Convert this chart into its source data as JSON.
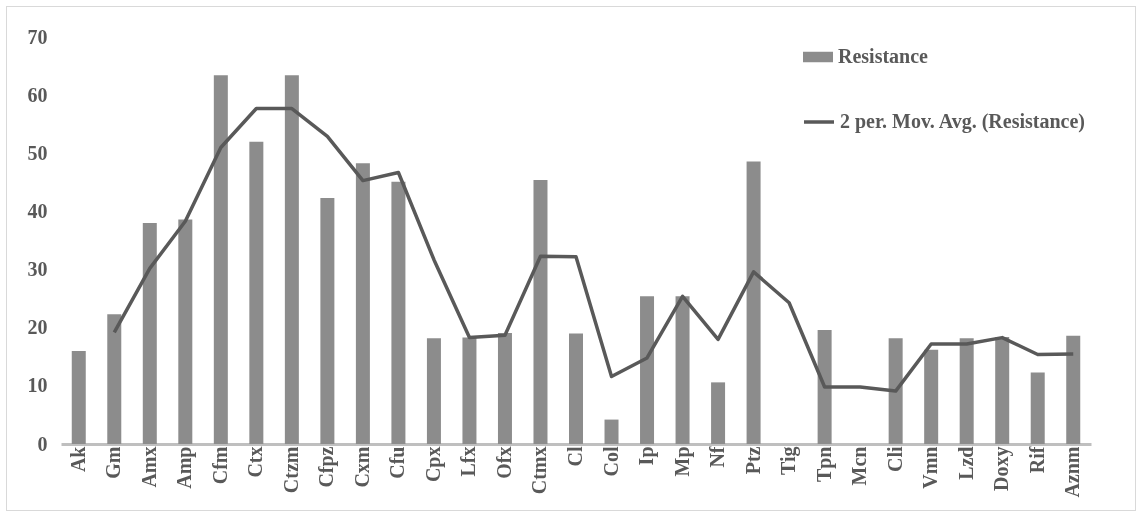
{
  "chart_data": {
    "type": "bar",
    "categories": [
      "Ak",
      "Gm",
      "Amx",
      "Amp",
      "Cfm",
      "Ctx",
      "Ctzm",
      "Cfpz",
      "Cxm",
      "Cfu",
      "Cpx",
      "Lfx",
      "Ofx",
      "Ctmx",
      "Cl",
      "Col",
      "Ip",
      "Mp",
      "Nf",
      "Ptz",
      "Tig",
      "Tpn",
      "Mcn",
      "Cli",
      "Vmn",
      "Lzd",
      "Doxy",
      "Rif",
      "Aznm"
    ],
    "series": [
      {
        "name": "Resistance",
        "color": "#8c8c8c",
        "values": [
          16,
          22.3,
          38,
          38.6,
          63.4,
          52,
          63.4,
          42.3,
          48.3,
          45.1,
          18.2,
          18.3,
          19.1,
          45.4,
          19,
          4.2,
          25.4,
          25.4,
          10.6,
          48.6,
          0,
          19.6,
          0,
          18.2,
          16.2,
          18.2,
          18.4,
          12.3,
          18.6
        ]
      },
      {
        "name": "2 per. Mov. Avg. (Resistance)",
        "type": "line",
        "color": "#595959",
        "values": [
          null,
          19.2,
          30.2,
          38.3,
          51,
          57.7,
          57.7,
          52.9,
          45.3,
          46.7,
          31.7,
          18.3,
          18.7,
          32.3,
          32.2,
          11.6,
          14.8,
          25.4,
          18,
          29.6,
          24.3,
          9.8,
          9.8,
          9.1,
          17.2,
          17.2,
          18.3,
          15.4,
          15.5
        ]
      }
    ],
    "ylim": [
      0,
      70
    ],
    "yticks": [
      0,
      10,
      20,
      30,
      40,
      50,
      60,
      70
    ],
    "grid": false,
    "legend": "top right",
    "marker": "none",
    "line_style": "solid"
  }
}
